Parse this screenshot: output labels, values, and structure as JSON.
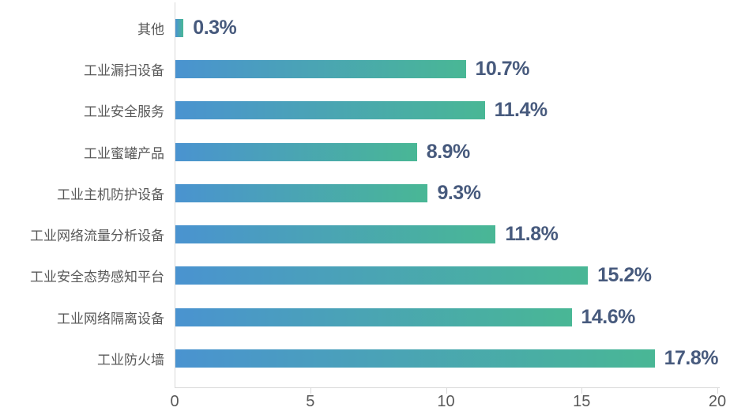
{
  "chart_data": {
    "type": "bar",
    "orientation": "horizontal",
    "title": "",
    "xlabel": "",
    "ylabel": "",
    "xlim": [
      0,
      20
    ],
    "xticks": [
      0,
      5,
      10,
      15,
      20
    ],
    "grid": false,
    "legend": "none",
    "categories_top_to_bottom": [
      "其他",
      "工业漏扫设备",
      "工业安全服务",
      "工业蜜罐产品",
      "工业主机防护设备",
      "工业网络流量分析设备",
      "工业安全态势感知平台",
      "工业网络隔离设备",
      "工业防火墙"
    ],
    "values": [
      0.3,
      10.7,
      11.4,
      8.9,
      9.3,
      11.8,
      15.2,
      14.6,
      17.8
    ],
    "value_labels": [
      "0.3%",
      "10.7%",
      "11.4%",
      "8.9%",
      "9.3%",
      "11.8%",
      "15.2%",
      "14.6%",
      "17.8%"
    ]
  },
  "colors": {
    "bar_gradient_start": "#4a93d0",
    "bar_gradient_end": "#49b795",
    "value_label": "#475a7d",
    "category_label": "#595959",
    "tick_label": "#595959",
    "axis_line": "#d9d9d9"
  }
}
